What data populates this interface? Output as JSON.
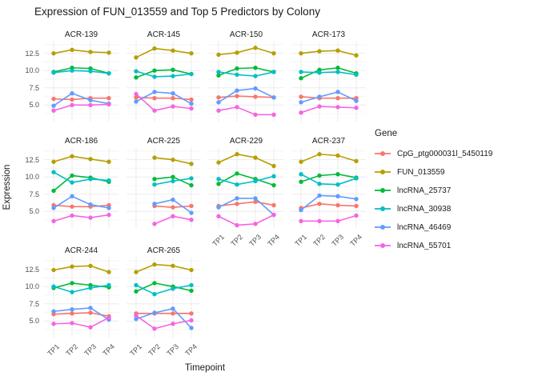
{
  "chart_data": {
    "type": "line",
    "title": "Expression of FUN_013559 and Top 5 Predictors by Colony",
    "xlabel": "Timepoint",
    "ylabel": "Expression",
    "x": [
      "TP1",
      "TP2",
      "TP3",
      "TP4"
    ],
    "yticks": [
      12.5,
      10.0,
      7.5,
      5.0
    ],
    "ylim": [
      2.6,
      14.2
    ],
    "grid": true,
    "legend_title": "Gene",
    "legend_position": "right",
    "series": [
      {
        "name": "CpG_ptg000031l_5450119",
        "color": "#F8766D"
      },
      {
        "name": "FUN_013559",
        "color": "#B79F00"
      },
      {
        "name": "lncRNA_25737",
        "color": "#00BA38"
      },
      {
        "name": "lncRNA_30938",
        "color": "#00BFC4"
      },
      {
        "name": "lncRNA_46469",
        "color": "#619CFF"
      },
      {
        "name": "lncRNA_55701",
        "color": "#F564E3"
      }
    ],
    "facets": [
      {
        "name": "ACR-139",
        "values": {
          "CpG_ptg000031l_5450119": [
            5.9,
            5.8,
            6.0,
            6.0
          ],
          "FUN_013559": [
            12.5,
            13.0,
            12.7,
            12.6
          ],
          "lncRNA_25737": [
            9.8,
            10.4,
            10.3,
            9.6
          ],
          "lncRNA_30938": [
            9.7,
            10.0,
            9.9,
            9.6
          ],
          "lncRNA_46469": [
            4.9,
            6.7,
            5.7,
            5.2
          ],
          "lncRNA_55701": [
            4.2,
            5.0,
            5.0,
            5.1
          ]
        }
      },
      {
        "name": "ACR-145",
        "values": {
          "CpG_ptg000031l_5450119": [
            6.1,
            6.0,
            6.0,
            5.8
          ],
          "FUN_013559": [
            11.9,
            13.2,
            12.9,
            12.5
          ],
          "lncRNA_25737": [
            9.0,
            10.0,
            10.1,
            9.5
          ],
          "lncRNA_30938": [
            9.9,
            9.1,
            9.2,
            9.5
          ],
          "lncRNA_46469": [
            5.5,
            6.9,
            6.7,
            5.2
          ],
          "lncRNA_55701": [
            6.6,
            4.2,
            4.8,
            4.5
          ]
        }
      },
      {
        "name": "ACR-150",
        "values": {
          "CpG_ptg000031l_5450119": [
            6.1,
            6.3,
            6.2,
            6.1
          ],
          "FUN_013559": [
            12.3,
            12.6,
            13.3,
            12.5
          ],
          "lncRNA_25737": [
            9.3,
            10.3,
            10.4,
            9.8
          ],
          "lncRNA_30938": [
            9.8,
            9.4,
            9.2,
            9.8
          ],
          "lncRNA_46469": [
            5.4,
            7.1,
            7.4,
            6.1
          ],
          "lncRNA_55701": [
            4.2,
            4.7,
            3.6,
            3.6
          ]
        }
      },
      {
        "name": "ACR-173",
        "values": {
          "CpG_ptg000031l_5450119": [
            6.2,
            6.0,
            6.0,
            6.0
          ],
          "FUN_013559": [
            12.5,
            12.8,
            12.9,
            12.2
          ],
          "lncRNA_25737": [
            8.9,
            10.1,
            10.4,
            9.6
          ],
          "lncRNA_30938": [
            9.8,
            9.7,
            9.8,
            9.4
          ],
          "lncRNA_46469": [
            5.4,
            6.2,
            6.9,
            5.6
          ],
          "lncRNA_55701": [
            3.9,
            4.8,
            4.7,
            4.6
          ]
        }
      },
      {
        "name": "ACR-186",
        "values": {
          "CpG_ptg000031l_5450119": [
            5.9,
            5.7,
            5.7,
            5.9
          ],
          "FUN_013559": [
            12.2,
            13.0,
            12.6,
            12.2
          ],
          "lncRNA_25737": [
            8.0,
            10.2,
            9.9,
            9.3
          ],
          "lncRNA_30938": [
            10.7,
            9.2,
            9.7,
            9.5
          ],
          "lncRNA_46469": [
            5.5,
            7.2,
            6.0,
            5.5
          ],
          "lncRNA_55701": [
            3.6,
            4.4,
            4.1,
            4.5
          ]
        }
      },
      {
        "name": "ACR-225",
        "values": {
          "CpG_ptg000031l_5450119": [
            null,
            5.8,
            5.6,
            5.8
          ],
          "FUN_013559": [
            null,
            12.8,
            12.5,
            11.9
          ],
          "lncRNA_25737": [
            null,
            9.7,
            10.0,
            8.8
          ],
          "lncRNA_30938": [
            null,
            8.9,
            9.4,
            9.8
          ],
          "lncRNA_46469": [
            null,
            6.1,
            6.7,
            4.8
          ],
          "lncRNA_55701": [
            null,
            3.2,
            4.3,
            3.8
          ]
        }
      },
      {
        "name": "ACR-229",
        "values": {
          "CpG_ptg000031l_5450119": [
            5.8,
            6.1,
            6.4,
            5.9
          ],
          "FUN_013559": [
            12.1,
            13.3,
            12.8,
            11.6
          ],
          "lncRNA_25737": [
            9.0,
            10.5,
            9.7,
            8.8
          ],
          "lncRNA_30938": [
            9.7,
            8.9,
            9.4,
            10.1
          ],
          "lncRNA_46469": [
            5.6,
            6.9,
            6.9,
            4.5
          ],
          "lncRNA_55701": [
            4.3,
            3.0,
            3.2,
            4.5
          ]
        }
      },
      {
        "name": "ACR-237",
        "values": {
          "CpG_ptg000031l_5450119": [
            5.5,
            6.1,
            5.9,
            5.8
          ],
          "FUN_013559": [
            12.2,
            13.3,
            13.1,
            12.3
          ],
          "lncRNA_25737": [
            9.3,
            10.2,
            10.4,
            9.9
          ],
          "lncRNA_30938": [
            10.4,
            9.0,
            8.9,
            9.8
          ],
          "lncRNA_46469": [
            5.2,
            7.3,
            7.2,
            6.8
          ],
          "lncRNA_55701": [
            3.6,
            3.6,
            3.6,
            4.4
          ]
        }
      },
      {
        "name": "ACR-244",
        "values": {
          "CpG_ptg000031l_5450119": [
            6.0,
            6.1,
            6.2,
            5.7
          ],
          "FUN_013559": [
            12.4,
            12.9,
            13.0,
            12.1
          ],
          "lncRNA_25737": [
            9.8,
            10.5,
            10.2,
            9.9
          ],
          "lncRNA_30938": [
            10.0,
            9.2,
            9.8,
            10.2
          ],
          "lncRNA_46469": [
            6.4,
            6.7,
            6.9,
            5.2
          ],
          "lncRNA_55701": [
            4.6,
            4.7,
            4.1,
            5.5
          ]
        }
      },
      {
        "name": "ACR-265",
        "values": {
          "CpG_ptg000031l_5450119": [
            6.1,
            6.1,
            6.1,
            6.1
          ],
          "FUN_013559": [
            12.1,
            13.2,
            13.0,
            12.4
          ],
          "lncRNA_25737": [
            9.3,
            10.5,
            10.0,
            9.4
          ],
          "lncRNA_30938": [
            10.2,
            8.9,
            9.7,
            10.2
          ],
          "lncRNA_46469": [
            5.3,
            6.2,
            6.8,
            4.0
          ],
          "lncRNA_55701": [
            5.8,
            3.9,
            4.6,
            5.1
          ]
        }
      }
    ]
  }
}
